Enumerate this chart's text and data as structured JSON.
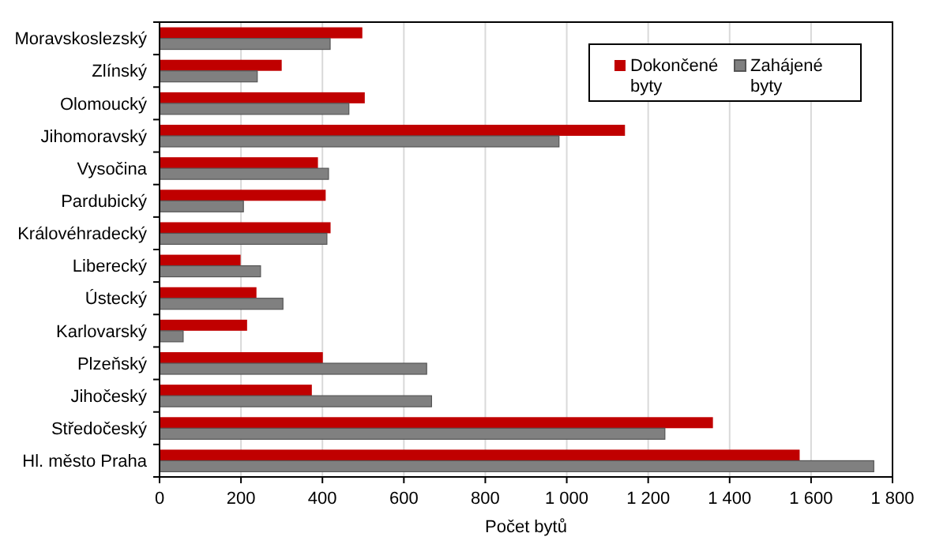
{
  "chart_data": {
    "type": "bar",
    "orientation": "horizontal",
    "xlabel": "Počet bytů",
    "categories": [
      "Moravskoslezský",
      "Zlínský",
      "Olomoucký",
      "Jihomoravský",
      "Vysočina",
      "Pardubický",
      "Královéhradecký",
      "Liberecký",
      "Ústecký",
      "Karlovarský",
      "Plzeňský",
      "Jihočeský",
      "Středočeský",
      "Hl. město Praha"
    ],
    "series": [
      {
        "name": "Dokončené byty",
        "color": "#c00000",
        "values": [
          498,
          300,
          504,
          1143,
          389,
          408,
          420,
          199,
          238,
          215,
          401,
          374,
          1359,
          1572
        ]
      },
      {
        "name": "Zahájené byty",
        "color": "#808080",
        "values": [
          419,
          240,
          465,
          981,
          415,
          206,
          411,
          248,
          303,
          58,
          656,
          668,
          1241,
          1754
        ]
      }
    ],
    "xlim": [
      0,
      1800
    ],
    "xticks": [
      0,
      {
        "value": 200,
        "label": "200"
      },
      {
        "value": 400,
        "label": "400"
      },
      {
        "value": 600,
        "label": "600"
      },
      {
        "value": 800,
        "label": "800"
      },
      {
        "value": 1000,
        "label": "1 000"
      },
      {
        "value": 1200,
        "label": "1 200"
      },
      {
        "value": 1400,
        "label": "1 400"
      },
      {
        "value": 1600,
        "label": "1 600"
      },
      {
        "value": 1800,
        "label": "1 800"
      }
    ],
    "grid": "x",
    "legend": "top right"
  }
}
